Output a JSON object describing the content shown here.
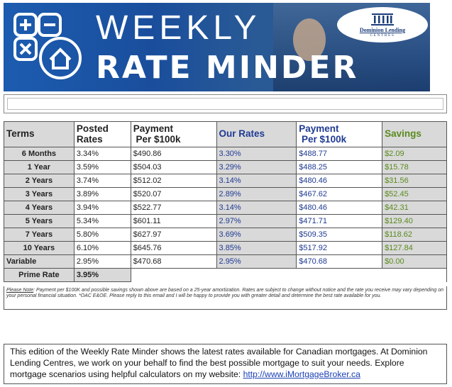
{
  "banner": {
    "title_weekly": "WEEKLY",
    "title_rate": "RATE MINDER",
    "brand_name": "Dominion Lending",
    "brand_sub": "CENTRES"
  },
  "table": {
    "headers": {
      "terms": "Terms",
      "posted_line1": "Posted",
      "posted_line2": "Rates",
      "payment_line1": "Payment",
      "payment_line2": "Per $100k",
      "our_rates": "Our Rates",
      "our_payment_line1": "Payment",
      "our_payment_line2": "Per $100k",
      "savings": "Savings"
    },
    "rows": [
      {
        "term": "6 Months",
        "posted": "3.34%",
        "payment": "$490.86",
        "our_rate": "3.30%",
        "our_payment": "$488.77",
        "savings": "$2.09"
      },
      {
        "term": "1 Year",
        "posted": "3.59%",
        "payment": "$504.03",
        "our_rate": "3.29%",
        "our_payment": "$488.25",
        "savings": "$15.78"
      },
      {
        "term": "2 Years",
        "posted": "3.74%",
        "payment": "$512.02",
        "our_rate": "3.14%",
        "our_payment": "$480.46",
        "savings": "$31.56"
      },
      {
        "term": "3 Years",
        "posted": "3.89%",
        "payment": "$520.07",
        "our_rate": "2.89%",
        "our_payment": "$467.62",
        "savings": "$52.45"
      },
      {
        "term": "4 Years",
        "posted": "3.94%",
        "payment": "$522.77",
        "our_rate": "3.14%",
        "our_payment": "$480.46",
        "savings": "$42.31"
      },
      {
        "term": "5 Years",
        "posted": "5.34%",
        "payment": "$601.11",
        "our_rate": "2.97%",
        "our_payment": "$471.71",
        "savings": "$129.40"
      },
      {
        "term": "7 Years",
        "posted": "5.80%",
        "payment": "$627.97",
        "our_rate": "3.69%",
        "our_payment": "$509.35",
        "savings": "$118.62"
      },
      {
        "term": "10 Years",
        "posted": "6.10%",
        "payment": "$645.76",
        "our_rate": "3.85%",
        "our_payment": "$517.92",
        "savings": "$127.84"
      },
      {
        "term": "Variable",
        "posted": "2.95%",
        "payment": "$470.68",
        "our_rate": "2.95%",
        "our_payment": "$470.68",
        "savings": "$0.00"
      }
    ],
    "prime_label": "Prime Rate",
    "prime_value": "3.95%"
  },
  "note": {
    "label": "Please Note",
    "text": ": Payment per $100K and possible savings shown above are based on a 25-year amortization. Rates are subject to change without notice and the rate you receive may vary depending on your personal financial situation. *OAC E&OE. Please reply to this email and I will be happy to provide you with greater detail and determine the best rate available for you."
  },
  "blurb": {
    "text": "This edition of the Weekly Rate Minder shows the latest rates available for Canadian mortgages. At Dominion Lending Centres, we work on your behalf to find the best possible mortgage to suit your needs. Explore mortgage scenarios using helpful calculators on my website: ",
    "link": "http://www.iMortgageBroker.ca"
  },
  "colors": {
    "banner_blue": "#1b4f9c",
    "header_gray": "#d9d9d9",
    "our_rate_blue": "#1f3a93",
    "savings_green": "#5a8a1e",
    "link_blue": "#1a3fb5"
  },
  "icons": [
    "calculator-icon",
    "house-icon",
    "pillars-logo-icon"
  ]
}
